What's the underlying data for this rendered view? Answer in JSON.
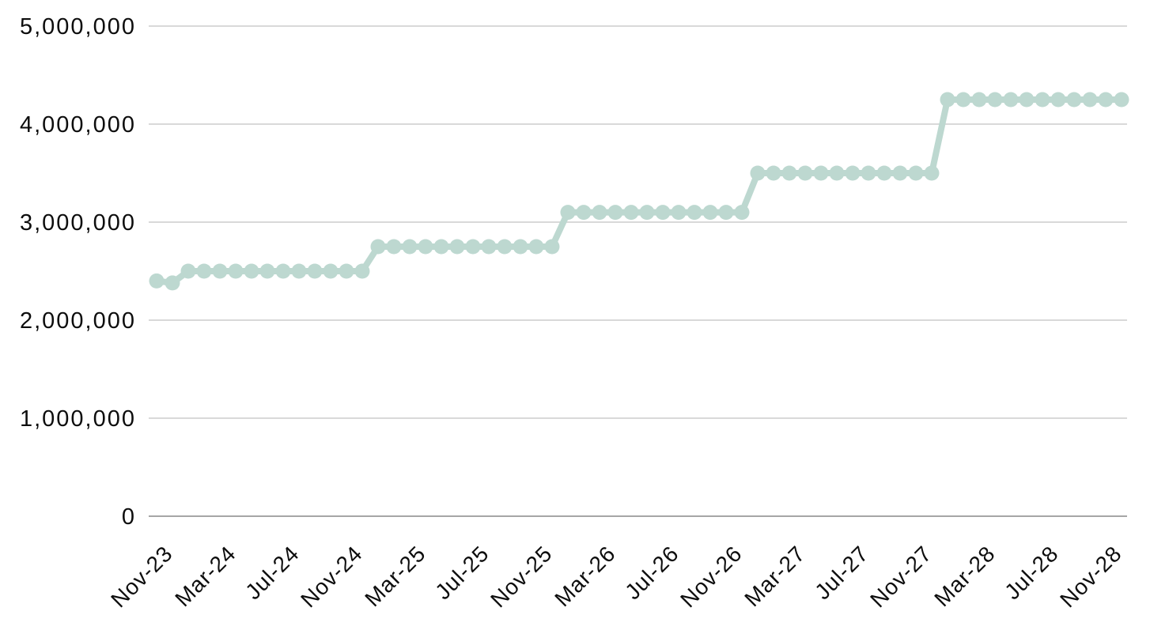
{
  "chart_data": {
    "type": "line",
    "title": "",
    "legend_position": "none",
    "grid": "horizontal",
    "marker": "circle",
    "line_color": "#bdd8d0",
    "x": [
      "Nov-23",
      "Dec-23",
      "Jan-24",
      "Feb-24",
      "Mar-24",
      "Apr-24",
      "May-24",
      "Jun-24",
      "Jul-24",
      "Aug-24",
      "Sep-24",
      "Oct-24",
      "Nov-24",
      "Dec-24",
      "Jan-25",
      "Feb-25",
      "Mar-25",
      "Apr-25",
      "May-25",
      "Jun-25",
      "Jul-25",
      "Aug-25",
      "Sep-25",
      "Oct-25",
      "Nov-25",
      "Dec-25",
      "Jan-26",
      "Feb-26",
      "Mar-26",
      "Apr-26",
      "May-26",
      "Jun-26",
      "Jul-26",
      "Aug-26",
      "Sep-26",
      "Oct-26",
      "Nov-26",
      "Dec-26",
      "Jan-27",
      "Feb-27",
      "Mar-27",
      "Apr-27",
      "May-27",
      "Jun-27",
      "Jul-27",
      "Aug-27",
      "Sep-27",
      "Oct-27",
      "Nov-27",
      "Dec-27",
      "Jan-28",
      "Feb-28",
      "Mar-28",
      "Apr-28",
      "May-28",
      "Jun-28",
      "Jul-28",
      "Aug-28",
      "Sep-28",
      "Oct-28",
      "Nov-28",
      "Dec-28"
    ],
    "values": [
      2400000,
      2380000,
      2500000,
      2500000,
      2500000,
      2500000,
      2500000,
      2500000,
      2500000,
      2500000,
      2500000,
      2500000,
      2500000,
      2500000,
      2750000,
      2750000,
      2750000,
      2750000,
      2750000,
      2750000,
      2750000,
      2750000,
      2750000,
      2750000,
      2750000,
      2750000,
      3100000,
      3100000,
      3100000,
      3100000,
      3100000,
      3100000,
      3100000,
      3100000,
      3100000,
      3100000,
      3100000,
      3100000,
      3500000,
      3500000,
      3500000,
      3500000,
      3500000,
      3500000,
      3500000,
      3500000,
      3500000,
      3500000,
      3500000,
      3500000,
      4250000,
      4250000,
      4250000,
      4250000,
      4250000,
      4250000,
      4250000,
      4250000,
      4250000,
      4250000,
      4250000,
      4250000
    ],
    "x_tick_step": 4,
    "x_tick_labels": [
      "Nov-23",
      "Mar-24",
      "Jul-24",
      "Nov-24",
      "Mar-25",
      "Jul-25",
      "Nov-25",
      "Mar-26",
      "Jul-26",
      "Nov-26",
      "Mar-27",
      "Jul-27",
      "Nov-27",
      "Mar-28",
      "Jul-28",
      "Nov-28"
    ],
    "y_ticks": [
      {
        "value": 0,
        "label": "0"
      },
      {
        "value": 1000000,
        "label": "1,000,000"
      },
      {
        "value": 2000000,
        "label": "2,000,000"
      },
      {
        "value": 3000000,
        "label": "3,000,000"
      },
      {
        "value": 4000000,
        "label": "4,000,000"
      },
      {
        "value": 5000000,
        "label": "5,000,000"
      }
    ],
    "ylim": [
      0,
      5000000
    ]
  },
  "style": {
    "background": "#ffffff",
    "gridline_color": "#d9d9d9",
    "axis_line_color": "#a6a6a6",
    "text_color": "#0d0d0d",
    "series_color": "#bdd8d0"
  }
}
